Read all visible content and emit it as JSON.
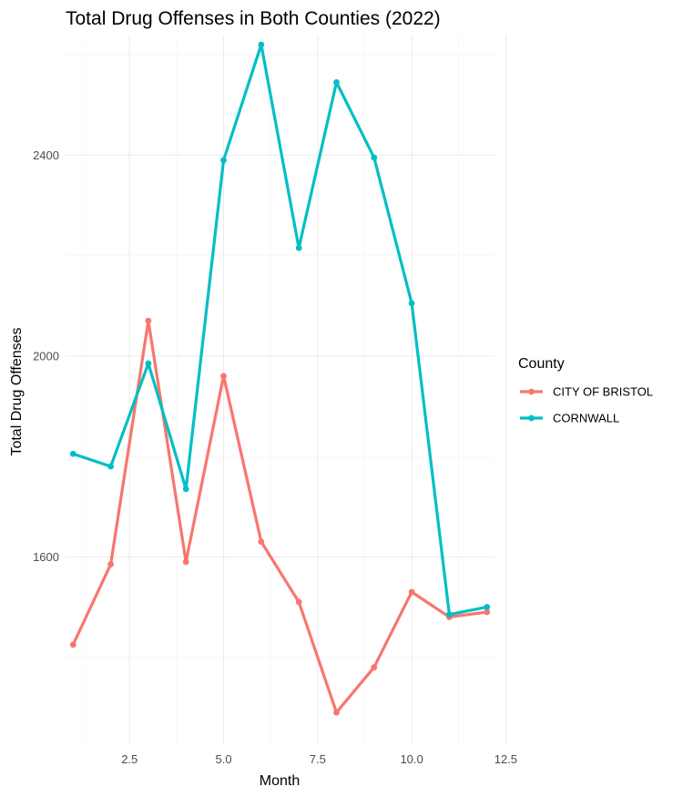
{
  "chart_data": {
    "type": "line",
    "title": "Total Drug Offenses in Both Counties (2022)",
    "xlabel": "Month",
    "ylabel": "Total Drug Offenses",
    "xlim": [
      0.8,
      12.2
    ],
    "ylim": [
      1225,
      2640
    ],
    "x_ticks": [
      2.5,
      5.0,
      7.5,
      10.0,
      12.5
    ],
    "x_tick_labels": [
      "2.5",
      "5.0",
      "7.5",
      "10.0",
      "12.5"
    ],
    "y_ticks": [
      1600,
      2000,
      2400
    ],
    "y_tick_labels": [
      "1600",
      "2000",
      "2400"
    ],
    "grid": true,
    "legend": {
      "title": "County",
      "position": "right"
    },
    "x": [
      1,
      2,
      3,
      4,
      5,
      6,
      7,
      8,
      9,
      10,
      11,
      12
    ],
    "series": [
      {
        "name": "CITY OF BRISTOL",
        "color": "#F8766D",
        "values": [
          1425,
          1585,
          2070,
          1590,
          1960,
          1630,
          1510,
          1290,
          1380,
          1530,
          1480,
          1490
        ]
      },
      {
        "name": "CORNWALL",
        "color": "#00BFC4",
        "values": [
          1805,
          1780,
          1985,
          1735,
          2390,
          2620,
          2215,
          2545,
          2395,
          2105,
          1485,
          1500
        ]
      }
    ]
  }
}
